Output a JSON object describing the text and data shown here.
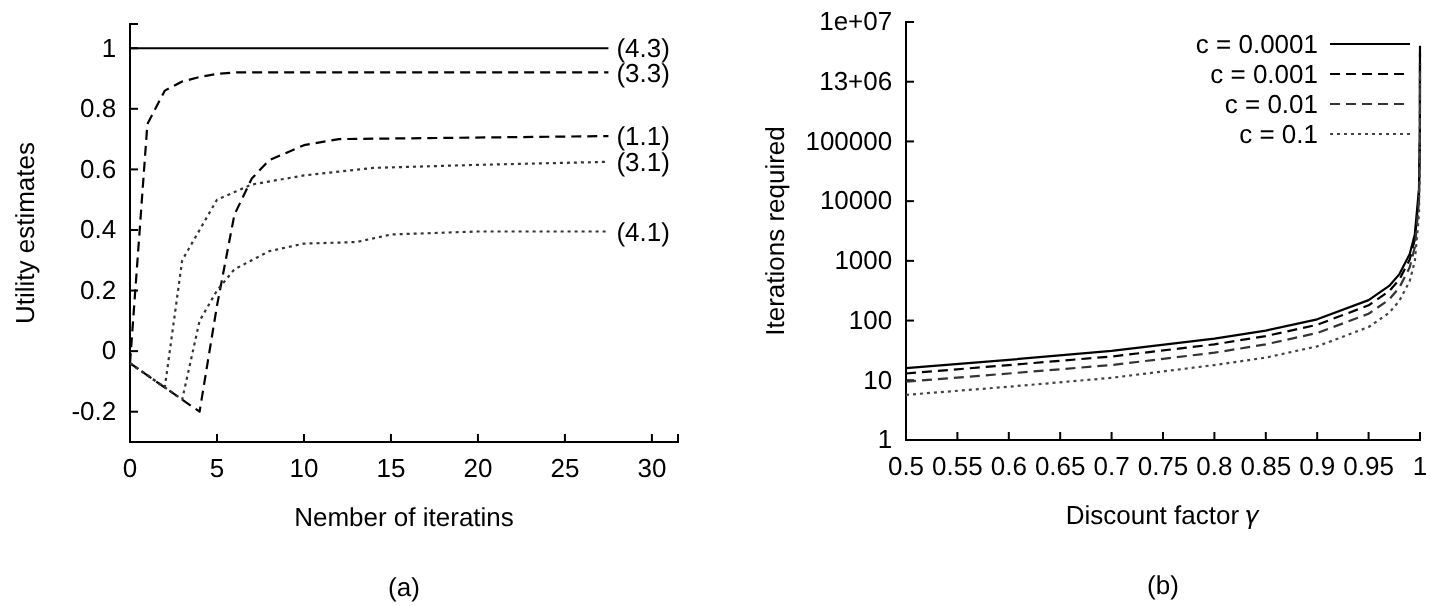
{
  "chart_data": [
    {
      "type": "line",
      "xlabel": "Nember of iteratins",
      "ylabel": "Utility estimates",
      "annotations": [
        "(a)"
      ],
      "xlim": [
        0,
        31.5
      ],
      "ylim": [
        -0.3,
        1.08
      ],
      "xticks": [
        0,
        5,
        10,
        15,
        20,
        25,
        30
      ],
      "yticks": [
        -0.2,
        0,
        0.2,
        0.4,
        0.6,
        0.8,
        1
      ],
      "legend": false,
      "marker": "none",
      "series": [
        {
          "name": "(4.3)",
          "color": "#000000",
          "line_style": "solid",
          "x": [
            0,
            27.5
          ],
          "values": [
            1,
            1
          ]
        },
        {
          "name": "(3.3)",
          "color": "#000000",
          "line_style": "dashed",
          "x": [
            0,
            1,
            2,
            3,
            4,
            5,
            6,
            27.5
          ],
          "values": [
            -0.04,
            0.75,
            0.86,
            0.89,
            0.905,
            0.915,
            0.92,
            0.92
          ]
        },
        {
          "name": "(1.1)",
          "color": "#000000",
          "line_style": "dashed",
          "x": [
            0,
            4,
            5,
            6,
            7,
            8,
            10,
            12,
            27.5
          ],
          "values": [
            -0.04,
            -0.2,
            0.15,
            0.45,
            0.57,
            0.63,
            0.68,
            0.7,
            0.71
          ]
        },
        {
          "name": "(3.1)",
          "color": "#333333",
          "line_style": "dotted",
          "x": [
            0,
            2,
            3,
            4,
            5,
            7,
            10,
            14,
            20,
            27.5
          ],
          "values": [
            -0.04,
            -0.12,
            0.3,
            0.4,
            0.5,
            0.55,
            0.58,
            0.605,
            0.615,
            0.625
          ]
        },
        {
          "name": "(4.1)",
          "color": "#333333",
          "line_style": "dotted",
          "x": [
            0,
            3,
            4,
            5,
            6,
            8,
            10,
            13,
            15,
            20,
            27.5
          ],
          "values": [
            -0.04,
            -0.16,
            0.1,
            0.2,
            0.27,
            0.33,
            0.355,
            0.36,
            0.385,
            0.395,
            0.395
          ]
        }
      ]
    },
    {
      "type": "line",
      "xlabel": "Discount factor 𝛾",
      "ylabel": "Iterations required",
      "annotations": [
        "(b)"
      ],
      "log": "y",
      "xlim": [
        0.5,
        1
      ],
      "ylim": [
        1,
        10000000
      ],
      "xticks": [
        0.5,
        0.55,
        0.6,
        0.65,
        0.7,
        0.75,
        0.8,
        0.85,
        0.9,
        0.95,
        1
      ],
      "yticks": [
        1,
        10,
        100,
        1000,
        10000,
        100000,
        {
          "value": 1000000,
          "label": "13+06"
        },
        {
          "value": 10000000,
          "label": "1e+07"
        }
      ],
      "legend": "top right",
      "marker": "none",
      "x": [
        0.5,
        0.6,
        0.7,
        0.8,
        0.85,
        0.9,
        0.95,
        0.97,
        0.98,
        0.99,
        0.995,
        0.999,
        0.9999,
        0.99999
      ],
      "series": [
        {
          "name": "c = 0.0001",
          "color": "#000000",
          "line_style": "solid",
          "values": [
            16,
            22,
            31,
            50,
            68,
            105,
            220,
            380,
            600,
            1300,
            2800,
            16000,
            150000,
            4000000
          ]
        },
        {
          "name": "c = 0.001",
          "color": "#000000",
          "line_style": "dashed",
          "values": [
            13,
            18,
            25,
            40,
            55,
            85,
            180,
            310,
            490,
            1050,
            2300,
            13000,
            120000,
            3000000
          ]
        },
        {
          "name": "c = 0.01",
          "color": "#333333",
          "line_style": "dashed",
          "values": [
            9.5,
            13,
            18,
            29,
            40,
            62,
            130,
            225,
            360,
            780,
            1700,
            10000,
            90000,
            2000000
          ]
        },
        {
          "name": "c = 0.1",
          "color": "#444444",
          "line_style": "dotted",
          "values": [
            5.7,
            7.8,
            11,
            18,
            24,
            37,
            78,
            135,
            215,
            460,
            1000,
            6000,
            55000,
            1200000
          ]
        }
      ]
    }
  ]
}
